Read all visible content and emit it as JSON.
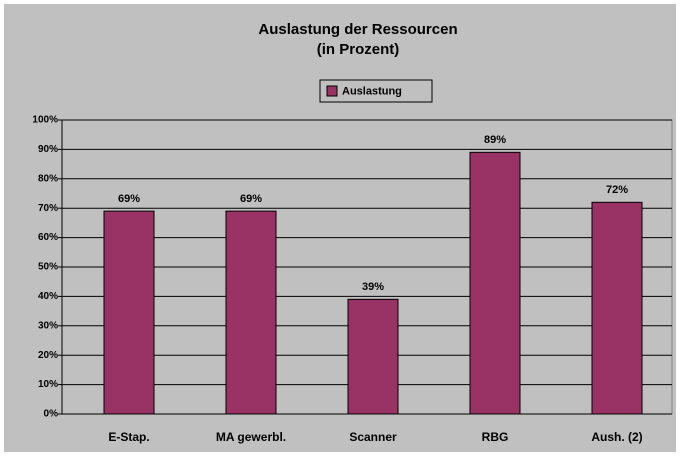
{
  "chart_data": {
    "type": "bar",
    "title": "Auslastung der Ressourcen",
    "subtitle": "(in Prozent)",
    "categories": [
      "E-Stap.",
      "MA gewerbl.",
      "Scanner",
      "RBG",
      "Aush. (2)"
    ],
    "series": [
      {
        "name": "Auslastung",
        "color": "#993366",
        "values": [
          69,
          69,
          39,
          89,
          72
        ],
        "value_labels": [
          "69%",
          "69%",
          "39%",
          "89%",
          "72%"
        ]
      }
    ],
    "ylim": [
      0,
      100
    ],
    "yticks": [
      {
        "value": 0,
        "label": "0%"
      },
      {
        "value": 10,
        "label": "10%"
      },
      {
        "value": 20,
        "label": "20%"
      },
      {
        "value": 30,
        "label": "30%"
      },
      {
        "value": 40,
        "label": "40%"
      },
      {
        "value": 50,
        "label": "50%"
      },
      {
        "value": 60,
        "label": "60%"
      },
      {
        "value": 70,
        "label": "70%"
      },
      {
        "value": 80,
        "label": "80%"
      },
      {
        "value": 90,
        "label": "90%"
      },
      {
        "value": 100,
        "label": "100%"
      }
    ],
    "grid": true,
    "legend": "top"
  }
}
